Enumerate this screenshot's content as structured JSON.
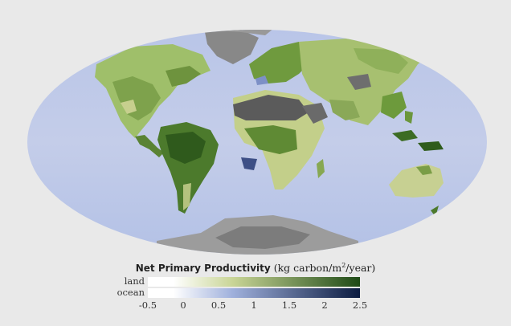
{
  "legend": {
    "title": "Net Primary Productivity",
    "units_pre": "(kg carbon/m",
    "units_sup": "2",
    "units_post": "/year)",
    "rows": [
      "land",
      "ocean"
    ],
    "ticks": [
      "-0.5",
      "0",
      "0.5",
      "1",
      "1.5",
      "2",
      "2.5"
    ],
    "colors": {
      "land_low": "#ffffff",
      "land_mid": "#c9d596",
      "land_high": "#1e4a16",
      "ocean_low": "#ffffff",
      "ocean_mid": "#9fb0dc",
      "ocean_high": "#0b1b40",
      "no_data": "#5a5a5a",
      "ice": "#9a9a9a"
    }
  }
}
